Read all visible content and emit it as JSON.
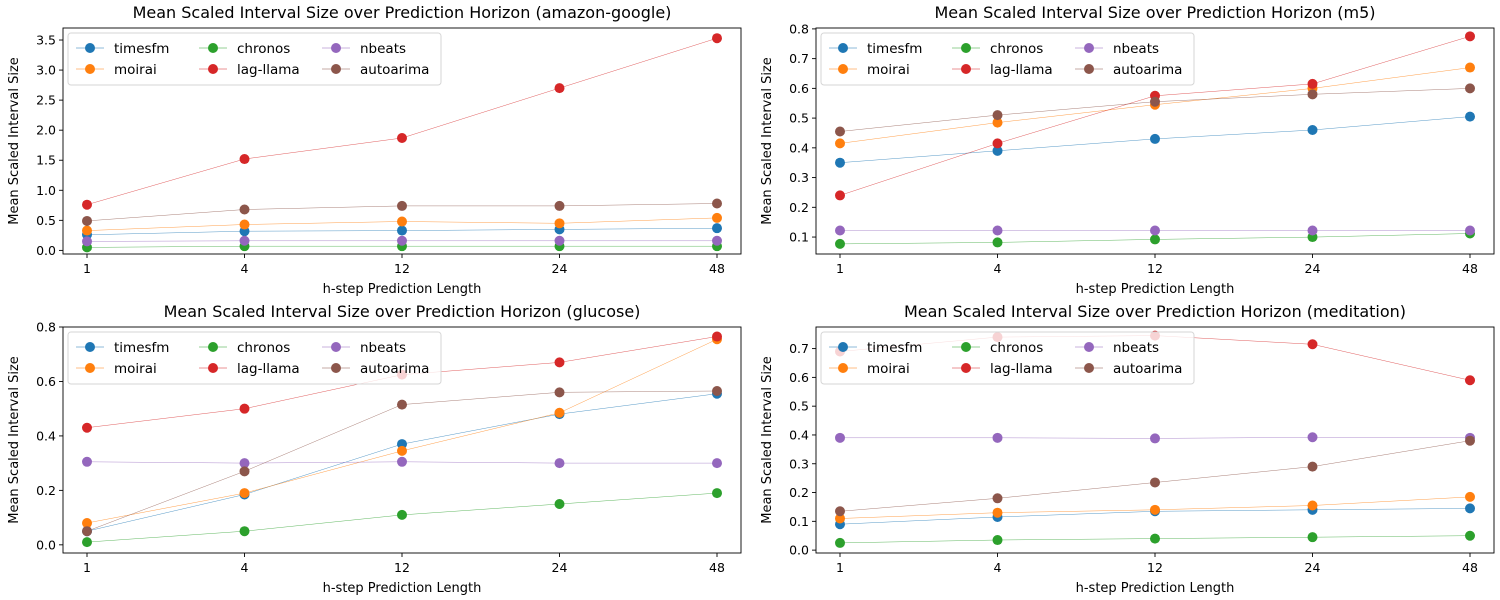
{
  "figure": {
    "background": "#ffffff"
  },
  "series_colors": {
    "timesfm": "#1f77b4",
    "moirai": "#ff7f0e",
    "chronos": "#2ca02c",
    "lag-llama": "#d62728",
    "nbeats": "#9467bd",
    "autoarima": "#8c564b"
  },
  "chart_data": [
    {
      "type": "line",
      "title": "Mean Scaled Interval Size over Prediction Horizon (amazon-google)",
      "xlabel": "h-step Prediction Length",
      "ylabel": "Mean Scaled Interval Size",
      "categories": [
        "1",
        "4",
        "12",
        "24",
        "48"
      ],
      "ylim": [
        -0.06,
        3.7
      ],
      "yticks": [
        0.0,
        0.5,
        1.0,
        1.5,
        2.0,
        2.5,
        3.0,
        3.5
      ],
      "ytick_labels": [
        "0.0",
        "0.5",
        "1.0",
        "1.5",
        "2.0",
        "2.5",
        "3.0",
        "3.5"
      ],
      "grid": false,
      "legend": "upper-left",
      "series": [
        {
          "name": "timesfm",
          "values": [
            0.26,
            0.32,
            0.33,
            0.35,
            0.37
          ]
        },
        {
          "name": "moirai",
          "values": [
            0.33,
            0.43,
            0.48,
            0.45,
            0.54
          ]
        },
        {
          "name": "chronos",
          "values": [
            0.05,
            0.07,
            0.07,
            0.07,
            0.07
          ]
        },
        {
          "name": "lag-llama",
          "values": [
            0.76,
            1.52,
            1.87,
            2.7,
            3.53
          ]
        },
        {
          "name": "nbeats",
          "values": [
            0.15,
            0.16,
            0.16,
            0.16,
            0.16
          ]
        },
        {
          "name": "autoarima",
          "values": [
            0.49,
            0.68,
            0.74,
            0.74,
            0.78
          ]
        }
      ]
    },
    {
      "type": "line",
      "title": "Mean Scaled Interval Size over Prediction Horizon (m5)",
      "xlabel": "h-step Prediction Length",
      "ylabel": "Mean Scaled Interval Size",
      "categories": [
        "1",
        "4",
        "12",
        "24",
        "48"
      ],
      "ylim": [
        0.043,
        0.803
      ],
      "yticks": [
        0.1,
        0.2,
        0.3,
        0.4,
        0.5,
        0.6,
        0.7,
        0.8
      ],
      "ytick_labels": [
        "0.1",
        "0.2",
        "0.3",
        "0.4",
        "0.5",
        "0.6",
        "0.7",
        "0.8"
      ],
      "grid": false,
      "legend": "upper-left",
      "series": [
        {
          "name": "timesfm",
          "values": [
            0.35,
            0.39,
            0.43,
            0.46,
            0.505
          ]
        },
        {
          "name": "moirai",
          "values": [
            0.415,
            0.485,
            0.545,
            0.6,
            0.67
          ]
        },
        {
          "name": "chronos",
          "values": [
            0.077,
            0.082,
            0.092,
            0.1,
            0.112
          ]
        },
        {
          "name": "lag-llama",
          "values": [
            0.24,
            0.415,
            0.575,
            0.615,
            0.775
          ]
        },
        {
          "name": "nbeats",
          "values": [
            0.122,
            0.122,
            0.122,
            0.122,
            0.122
          ]
        },
        {
          "name": "autoarima",
          "values": [
            0.455,
            0.51,
            0.555,
            0.58,
            0.6
          ]
        }
      ]
    },
    {
      "type": "line",
      "title": "Mean Scaled Interval Size over Prediction Horizon (glucose)",
      "xlabel": "h-step Prediction Length",
      "ylabel": "Mean Scaled Interval Size",
      "categories": [
        "1",
        "4",
        "12",
        "24",
        "48"
      ],
      "ylim": [
        -0.03,
        0.8
      ],
      "yticks": [
        0.0,
        0.2,
        0.4,
        0.6,
        0.8
      ],
      "ytick_labels": [
        "0.0",
        "0.2",
        "0.4",
        "0.6",
        "0.8"
      ],
      "grid": false,
      "legend": "upper-left",
      "series": [
        {
          "name": "timesfm",
          "values": [
            0.05,
            0.185,
            0.37,
            0.48,
            0.555
          ]
        },
        {
          "name": "moirai",
          "values": [
            0.08,
            0.19,
            0.345,
            0.485,
            0.755
          ]
        },
        {
          "name": "chronos",
          "values": [
            0.01,
            0.05,
            0.11,
            0.15,
            0.19
          ]
        },
        {
          "name": "lag-llama",
          "values": [
            0.43,
            0.5,
            0.625,
            0.67,
            0.765
          ]
        },
        {
          "name": "nbeats",
          "values": [
            0.305,
            0.3,
            0.305,
            0.3,
            0.3
          ]
        },
        {
          "name": "autoarima",
          "values": [
            0.05,
            0.27,
            0.515,
            0.56,
            0.565
          ]
        }
      ]
    },
    {
      "type": "line",
      "title": "Mean Scaled Interval Size over Prediction Horizon (meditation)",
      "xlabel": "h-step Prediction Length",
      "ylabel": "Mean Scaled Interval Size",
      "categories": [
        "1",
        "4",
        "12",
        "24",
        "48"
      ],
      "ylim": [
        -0.01,
        0.775
      ],
      "yticks": [
        0.0,
        0.1,
        0.2,
        0.3,
        0.4,
        0.5,
        0.6,
        0.7
      ],
      "ytick_labels": [
        "0.0",
        "0.1",
        "0.2",
        "0.3",
        "0.4",
        "0.5",
        "0.6",
        "0.7"
      ],
      "grid": false,
      "legend": "upper-left",
      "series": [
        {
          "name": "timesfm",
          "values": [
            0.09,
            0.115,
            0.135,
            0.14,
            0.145
          ]
        },
        {
          "name": "moirai",
          "values": [
            0.11,
            0.13,
            0.14,
            0.155,
            0.185
          ]
        },
        {
          "name": "chronos",
          "values": [
            0.025,
            0.035,
            0.04,
            0.045,
            0.05
          ]
        },
        {
          "name": "lag-llama",
          "values": [
            0.69,
            0.74,
            0.745,
            0.715,
            0.59
          ]
        },
        {
          "name": "nbeats",
          "values": [
            0.39,
            0.39,
            0.388,
            0.392,
            0.39
          ]
        },
        {
          "name": "autoarima",
          "values": [
            0.135,
            0.18,
            0.235,
            0.29,
            0.38
          ]
        }
      ]
    }
  ]
}
